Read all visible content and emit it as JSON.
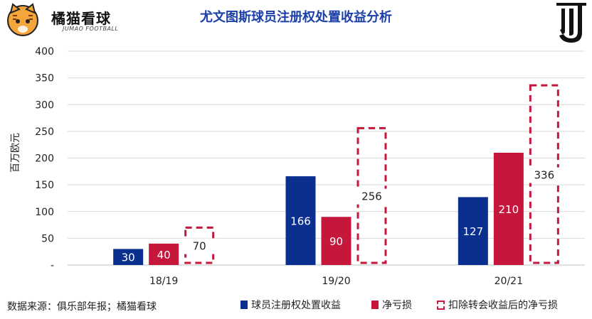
{
  "brand": {
    "name": "橘猫看球",
    "sub": "JUMAO FOOTBALL"
  },
  "title": "尤文图斯球员注册权处置收益分析",
  "source": "数据来源：俱乐部年报；橘猫看球",
  "colors": {
    "blue": "#0b2f8f",
    "red": "#c4173b",
    "dashed": "#c4173b",
    "grid": "#d9d9d9",
    "title": "#1a3fa6"
  },
  "icons": {
    "brand_logo": "cat-face-icon",
    "club_logo": "juventus-j-icon"
  },
  "chart_data": {
    "type": "bar",
    "title": "尤文图斯球员注册权处置收益分析",
    "ylabel": "百万欧元",
    "xlabel": "",
    "ylim": [
      0,
      400
    ],
    "yticks": [
      "-",
      "50",
      "100",
      "150",
      "200",
      "250",
      "300",
      "350",
      "400"
    ],
    "categories": [
      "18/19",
      "19/20",
      "20/21"
    ],
    "series": [
      {
        "name": "球员注册权处置收益",
        "values": [
          30,
          166,
          127
        ],
        "style": "solid",
        "color": "#0b2f8f"
      },
      {
        "name": "净亏损",
        "values": [
          40,
          90,
          210
        ],
        "style": "solid",
        "color": "#c4173b"
      },
      {
        "name": "扣除转会收益后的净亏损",
        "values": [
          70,
          256,
          336
        ],
        "style": "dashed",
        "color": "#c4173b"
      }
    ],
    "grid": true,
    "legend": "bottom-right"
  }
}
